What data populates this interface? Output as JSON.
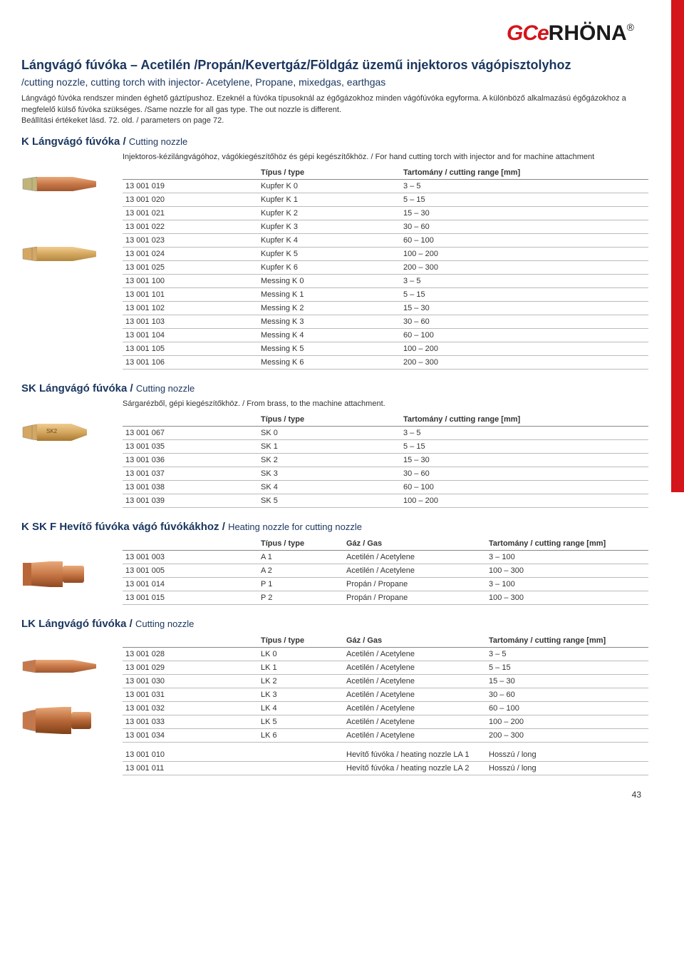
{
  "logo": {
    "part1": "GCe",
    "part2": "RHÖNA",
    "reg": "®"
  },
  "header": {
    "title_hu": "Lángvágó fúvóka – Acetilén /Propán/Kevertgáz/Földgáz üzemű injektoros vágópisztolyhoz",
    "title_en": "/cutting nozzle, cutting torch with injector- Acetylene, Propane, mixedgas, earthgas",
    "intro": "Lángvágó fúvóka rendszer minden éghető gáztípushoz. Ezeknél a fúvóka típusoknál az égőgázokhoz minden vágófúvóka egyforma. A különböző alkalmazású égőgázokhoz a megfelelő külső fúvóka szükséges. /Same nozzle for all gas type. The out nozzle is different.",
    "intro2": "Beállítási értékeket lásd. 72. old. / parameters on page 72."
  },
  "k_section": {
    "title_hu": "K Lángvágó fúvóka / ",
    "title_en": "Cutting nozzle",
    "desc": "Injektoros-kézilángvágóhoz, vágókiegészítőhöz és gépi kegészítőkhöz. / For hand cutting torch with injector and for machine attachment",
    "headers": [
      "",
      "Típus / type",
      "Tartomány / cutting range [mm]"
    ],
    "rows": [
      [
        "13 001 019",
        "Kupfer K 0",
        "3 – 5"
      ],
      [
        "13 001 020",
        "Kupfer K 1",
        "5 – 15"
      ],
      [
        "13 001 021",
        "Kupfer K 2",
        "15 – 30"
      ],
      [
        "13 001 022",
        "Kupfer K 3",
        "30 – 60"
      ],
      [
        "13 001 023",
        "Kupfer K 4",
        "60 – 100"
      ],
      [
        "13 001 024",
        "Kupfer K 5",
        "100 – 200"
      ],
      [
        "13 001 025",
        "Kupfer K 6",
        "200 – 300"
      ],
      [
        "13 001 100",
        "Messing K 0",
        "3 – 5"
      ],
      [
        "13 001 101",
        "Messing K 1",
        "5 – 15"
      ],
      [
        "13 001 102",
        "Messing K 2",
        "15 – 30"
      ],
      [
        "13 001 103",
        "Messing K 3",
        "30 – 60"
      ],
      [
        "13 001 104",
        "Messing K 4",
        "60 – 100"
      ],
      [
        "13 001 105",
        "Messing K 5",
        "100 – 200"
      ],
      [
        "13 001 106",
        "Messing K 6",
        "200 – 300"
      ]
    ]
  },
  "sk_section": {
    "title_hu": "SK Lángvágó fúvóka / ",
    "title_en": "Cutting nozzle",
    "desc": "Sárgarézből, gépi kiegészítőkhöz. / From brass, to the machine attachment.",
    "headers": [
      "",
      "Típus / type",
      "Tartomány / cutting range [mm]"
    ],
    "rows": [
      [
        "13 001 067",
        "SK 0",
        "3 – 5"
      ],
      [
        "13 001 035",
        "SK 1",
        "5 – 15"
      ],
      [
        "13 001 036",
        "SK 2",
        "15 – 30"
      ],
      [
        "13 001 037",
        "SK 3",
        "30 – 60"
      ],
      [
        "13 001 038",
        "SK 4",
        "60 – 100"
      ],
      [
        "13 001 039",
        "SK 5",
        "100 – 200"
      ]
    ]
  },
  "kskf_section": {
    "title_hu": "K SK F Hevítő fúvóka vágó fúvókákhoz / ",
    "title_en": "Heating nozzle for cutting nozzle",
    "headers": [
      "",
      "Típus / type",
      "Gáz / Gas",
      "Tartomány / cutting range [mm]"
    ],
    "rows": [
      [
        "13 001 003",
        "A 1",
        "Acetilén / Acetylene",
        "3 – 100"
      ],
      [
        "13 001 005",
        "A 2",
        "Acetilén / Acetylene",
        "100 – 300"
      ],
      [
        "13 001 014",
        "P 1",
        "Propán / Propane",
        "3 – 100"
      ],
      [
        "13 001 015",
        "P 2",
        "Propán / Propane",
        "100 – 300"
      ]
    ]
  },
  "lk_section": {
    "title_hu": "LK Lángvágó fúvóka / ",
    "title_en": "Cutting nozzle",
    "headers": [
      "",
      "Típus / type",
      "Gáz / Gas",
      "Tartomány / cutting range [mm]"
    ],
    "rows": [
      [
        "13 001 028",
        "LK 0",
        "Acetilén / Acetylene",
        "3 – 5"
      ],
      [
        "13 001 029",
        "LK 1",
        "Acetilén / Acetylene",
        "5 – 15"
      ],
      [
        "13 001 030",
        "LK 2",
        "Acetilén / Acetylene",
        "15 – 30"
      ],
      [
        "13 001 031",
        "LK 3",
        "Acetilén / Acetylene",
        "30 – 60"
      ],
      [
        "13 001 032",
        "LK 4",
        "Acetilén / Acetylene",
        "60 – 100"
      ],
      [
        "13 001 033",
        "LK 5",
        "Acetilén / Acetylene",
        "100 – 200"
      ],
      [
        "13 001 034",
        "LK 6",
        "Acetilén / Acetylene",
        "200 – 300"
      ]
    ],
    "rows2": [
      [
        "13 001 010",
        "",
        "Hevítő fúvóka / heating nozzle LA 1",
        "Hosszú / long"
      ],
      [
        "13 001 011",
        "",
        "Hevítő fúvóka / heating nozzle LA 2",
        "Hosszú / long"
      ]
    ]
  },
  "page_number": "43",
  "colors": {
    "brand_red": "#d4151b",
    "brand_navy": "#1a365f",
    "nozzle_copper": "#c87848",
    "nozzle_copper_dark": "#a05830",
    "nozzle_brass": "#d5a760",
    "nozzle_brass_dark": "#b08840"
  }
}
